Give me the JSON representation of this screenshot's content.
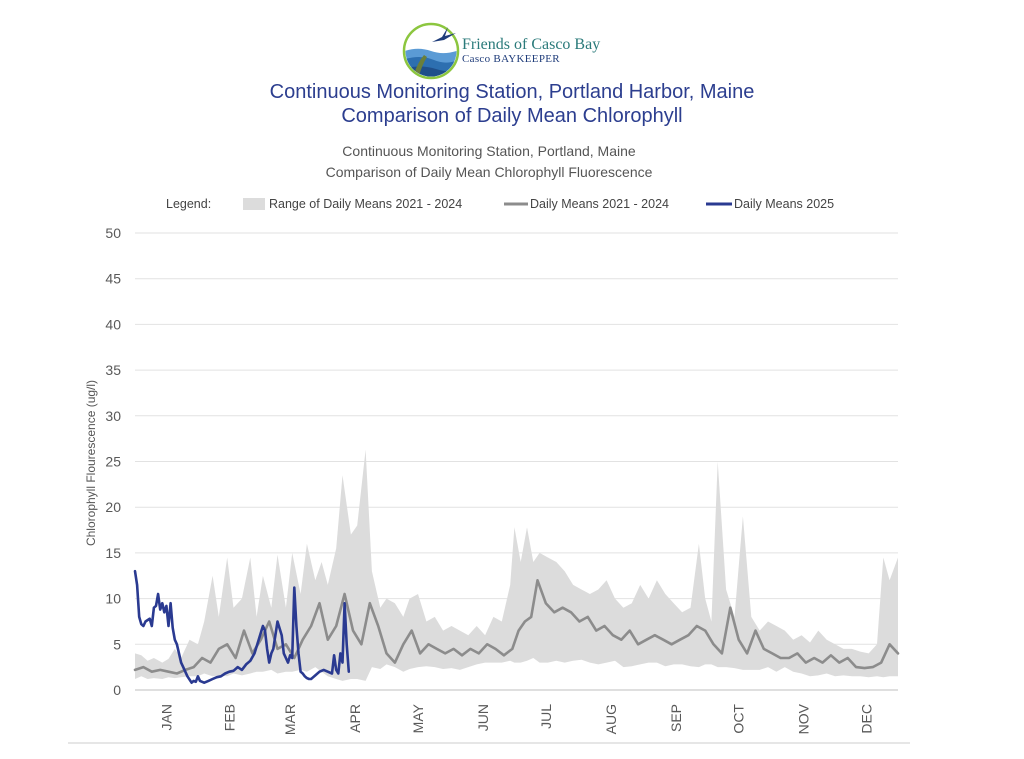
{
  "organization": {
    "name": "Friends of Casco Bay",
    "subtitle": "Casco BAYKEEPER"
  },
  "colors": {
    "range": "#dcdcdc",
    "mean_hist": "#8c8c8c",
    "mean_2025": "#2a3a91",
    "title": "#2c3e8f",
    "grid": "#e2e2e2"
  },
  "page_titles": {
    "line1": "Continuous Monitoring Station, Portland Harbor, Maine",
    "line2": "Comparison of Daily Mean Chlorophyll"
  },
  "chart_data": {
    "type": "line",
    "title": "Continuous Monitoring Station, Portland, Maine",
    "subtitle": "Comparison of Daily Mean Chlorophyll Fluorescence",
    "ylabel": "Chlorophyll Flourescence (ug/l)",
    "xlabel": "",
    "ylim": [
      0,
      50
    ],
    "yticks": [
      "0",
      "5",
      "10",
      "15",
      "20",
      "25",
      "30",
      "35",
      "40",
      "45",
      "50"
    ],
    "x_unit": "day of year",
    "xlim": [
      1,
      365
    ],
    "months": [
      "JAN",
      "FEB",
      "MAR",
      "APR",
      "MAY",
      "JUN",
      "JUL",
      "AUG",
      "SEP",
      "OCT",
      "NOV",
      "DEC"
    ],
    "grid": true,
    "legend": {
      "label": "Legend:",
      "placement": "top",
      "entries": [
        "Range of Daily Means 2021 - 2024",
        "Daily Means 2021 - 2024",
        "Daily Means 2025"
      ]
    },
    "series": [
      {
        "name": "Range of Daily Means 2021 - 2024",
        "kind": "band",
        "x": [
          1,
          4,
          7,
          10,
          14,
          17,
          20,
          23,
          27,
          31,
          34,
          38,
          41,
          45,
          48,
          52,
          56,
          59,
          62,
          66,
          69,
          73,
          76,
          80,
          83,
          87,
          90,
          93,
          97,
          100,
          104,
          107,
          111,
          114,
          118,
          121,
          125,
          129,
          132,
          136,
          140,
          144,
          148,
          152,
          156,
          160,
          164,
          168,
          172,
          176,
          180,
          182,
          185,
          188,
          191,
          194,
          198,
          202,
          206,
          210,
          214,
          218,
          222,
          226,
          230,
          234,
          238,
          242,
          246,
          250,
          254,
          258,
          262,
          266,
          270,
          273,
          276,
          279,
          283,
          287,
          291,
          295,
          299,
          303,
          307,
          311,
          315,
          319,
          323,
          327,
          331,
          335,
          339,
          343,
          347,
          351,
          355,
          358,
          361,
          365
        ],
        "low": [
          1.2,
          1.5,
          1.2,
          1.3,
          1.2,
          1.4,
          1.3,
          1.4,
          1.5,
          1.5,
          1.8,
          1.5,
          1.6,
          1.5,
          1.8,
          1.6,
          1.8,
          2.0,
          2.0,
          2.2,
          1.8,
          2.0,
          2.0,
          2.2,
          2.0,
          2.5,
          2.0,
          1.5,
          1.2,
          1.0,
          1.2,
          1.2,
          1.0,
          2.5,
          2.3,
          2.8,
          2.5,
          2.0,
          2.3,
          2.5,
          2.6,
          2.5,
          2.3,
          2.4,
          2.2,
          2.5,
          2.8,
          3.0,
          3.0,
          3.0,
          3.2,
          3.0,
          3.0,
          3.2,
          3.5,
          3.0,
          3.0,
          3.2,
          3.0,
          3.2,
          3.3,
          3.0,
          2.8,
          3.0,
          3.2,
          2.5,
          2.6,
          2.8,
          3.0,
          3.0,
          2.6,
          2.8,
          2.8,
          2.6,
          2.5,
          2.8,
          2.8,
          2.5,
          2.5,
          2.4,
          2.2,
          2.2,
          2.2,
          2.5,
          2.0,
          2.5,
          2.0,
          1.8,
          1.5,
          1.6,
          1.8,
          1.5,
          1.6,
          1.5,
          1.5,
          1.4,
          1.5,
          1.4,
          1.5,
          1.5
        ],
        "high": [
          4.0,
          3.8,
          3.2,
          3.5,
          3.0,
          3.4,
          4.5,
          3.5,
          5.5,
          5.0,
          7.5,
          12.5,
          8.0,
          14.5,
          9.0,
          10.0,
          14.5,
          8.0,
          12.5,
          9.0,
          14.8,
          9.0,
          15.0,
          10.5,
          16.0,
          12.0,
          14.0,
          11.5,
          15.5,
          23.5,
          17.0,
          18.0,
          26.3,
          13.0,
          9.0,
          10.0,
          9.5,
          8.0,
          10.0,
          10.5,
          7.5,
          8.0,
          6.5,
          7.0,
          6.5,
          6.0,
          7.0,
          6.0,
          8.0,
          7.5,
          11.5,
          17.8,
          14.0,
          17.8,
          14.0,
          15.0,
          14.5,
          14.0,
          13.0,
          11.5,
          11.0,
          10.5,
          11.0,
          12.0,
          10.0,
          9.0,
          9.5,
          11.5,
          10.0,
          12.0,
          10.5,
          9.5,
          8.5,
          9.0,
          16.0,
          10.0,
          7.5,
          25.0,
          11.0,
          8.0,
          19.0,
          8.0,
          6.5,
          7.5,
          7.0,
          6.5,
          5.5,
          6.0,
          5.2,
          6.5,
          5.5,
          5.0,
          4.5,
          4.5,
          4.2,
          4.0,
          5.0,
          14.5,
          12.0,
          14.5
        ]
      },
      {
        "name": "Daily Means 2021 - 2024",
        "kind": "line",
        "x": [
          1,
          5,
          9,
          13,
          17,
          21,
          25,
          29,
          33,
          37,
          41,
          45,
          49,
          53,
          57,
          61,
          65,
          69,
          73,
          77,
          81,
          85,
          89,
          93,
          97,
          101,
          105,
          109,
          113,
          117,
          121,
          125,
          129,
          133,
          137,
          141,
          145,
          149,
          153,
          157,
          161,
          165,
          169,
          173,
          177,
          181,
          184,
          187,
          190,
          193,
          197,
          201,
          205,
          209,
          213,
          217,
          221,
          225,
          229,
          233,
          237,
          241,
          245,
          249,
          253,
          257,
          261,
          265,
          269,
          273,
          277,
          281,
          285,
          289,
          293,
          297,
          301,
          305,
          309,
          313,
          317,
          321,
          325,
          329,
          333,
          337,
          341,
          345,
          349,
          353,
          357,
          361,
          365
        ],
        "y": [
          2.2,
          2.5,
          2.0,
          2.2,
          2.0,
          1.8,
          2.2,
          2.5,
          3.5,
          3.0,
          4.5,
          5.0,
          3.5,
          6.5,
          4.0,
          5.5,
          7.5,
          4.5,
          5.0,
          3.5,
          5.5,
          7.0,
          9.5,
          5.5,
          7.0,
          10.5,
          6.5,
          5.0,
          9.5,
          7.0,
          4.0,
          3.0,
          5.0,
          6.5,
          4.0,
          5.0,
          4.5,
          4.0,
          4.5,
          3.8,
          4.5,
          4.0,
          5.0,
          4.5,
          3.8,
          4.5,
          6.5,
          7.5,
          8.0,
          12.0,
          9.5,
          8.5,
          9.0,
          8.5,
          7.5,
          8.0,
          6.5,
          7.0,
          6.0,
          5.5,
          6.5,
          5.0,
          5.5,
          6.0,
          5.5,
          5.0,
          5.5,
          6.0,
          7.0,
          6.5,
          5.0,
          4.0,
          9.0,
          5.5,
          4.0,
          6.5,
          4.5,
          4.0,
          3.5,
          3.5,
          4.0,
          3.0,
          3.5,
          3.0,
          3.8,
          3.0,
          3.5,
          2.5,
          2.4,
          2.5,
          3.0,
          5.0,
          4.0
        ]
      },
      {
        "name": "Daily Means 2025",
        "kind": "line",
        "x": [
          1,
          2,
          3,
          4,
          5,
          6,
          8,
          9,
          10,
          11,
          12,
          13,
          14,
          15,
          16,
          17,
          18,
          19,
          20,
          21,
          22,
          23,
          24,
          25,
          26,
          28,
          29,
          30,
          31,
          32,
          34,
          36,
          38,
          40,
          42,
          44,
          46,
          48,
          50,
          52,
          54,
          56,
          58,
          60,
          62,
          63,
          64,
          65,
          66,
          67,
          69,
          71,
          72,
          73,
          74,
          75,
          76,
          77,
          78,
          79,
          80,
          81,
          82,
          83,
          84,
          85,
          86,
          87,
          89,
          91,
          93,
          95,
          96,
          97,
          98,
          99,
          100,
          101,
          102,
          103
        ],
        "y": [
          13.0,
          11.5,
          8.0,
          7.2,
          7.0,
          7.5,
          7.8,
          7.0,
          9.0,
          9.2,
          10.5,
          8.8,
          9.5,
          8.5,
          9.2,
          7.0,
          9.5,
          6.8,
          5.5,
          5.0,
          4.0,
          3.0,
          2.5,
          2.0,
          1.5,
          0.8,
          1.0,
          0.9,
          1.5,
          1.0,
          0.8,
          1.0,
          1.2,
          1.4,
          1.5,
          1.8,
          2.0,
          2.1,
          2.5,
          2.2,
          2.8,
          3.2,
          4.0,
          5.5,
          7.0,
          6.5,
          4.5,
          3.0,
          4.0,
          4.5,
          7.5,
          6.0,
          4.0,
          3.5,
          3.0,
          3.8,
          3.5,
          11.2,
          7.0,
          4.0,
          2.0,
          1.8,
          1.5,
          1.3,
          1.2,
          1.2,
          1.4,
          1.6,
          2.0,
          2.2,
          2.0,
          1.8,
          3.8,
          2.2,
          1.8,
          4.0,
          3.0,
          9.5,
          5.0,
          2.0
        ]
      }
    ]
  }
}
